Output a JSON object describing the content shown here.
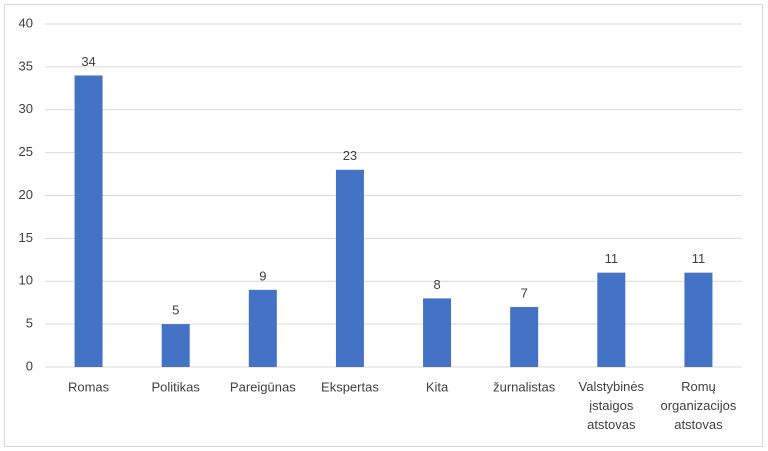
{
  "chart_data": {
    "type": "bar",
    "categories": [
      "Romas",
      "Politikas",
      "Pareigūnas",
      "Ekspertas",
      "Kita",
      "žurnalistas",
      "Valstybinės įstaigos atstovas",
      "Romų organizacijos atstovas"
    ],
    "values": [
      34,
      5,
      9,
      23,
      8,
      7,
      11,
      11
    ],
    "color": "#4472c4",
    "ylim": [
      0,
      40
    ],
    "yticks": [
      0,
      5,
      10,
      15,
      20,
      25,
      30,
      35,
      40
    ],
    "grid": true
  }
}
